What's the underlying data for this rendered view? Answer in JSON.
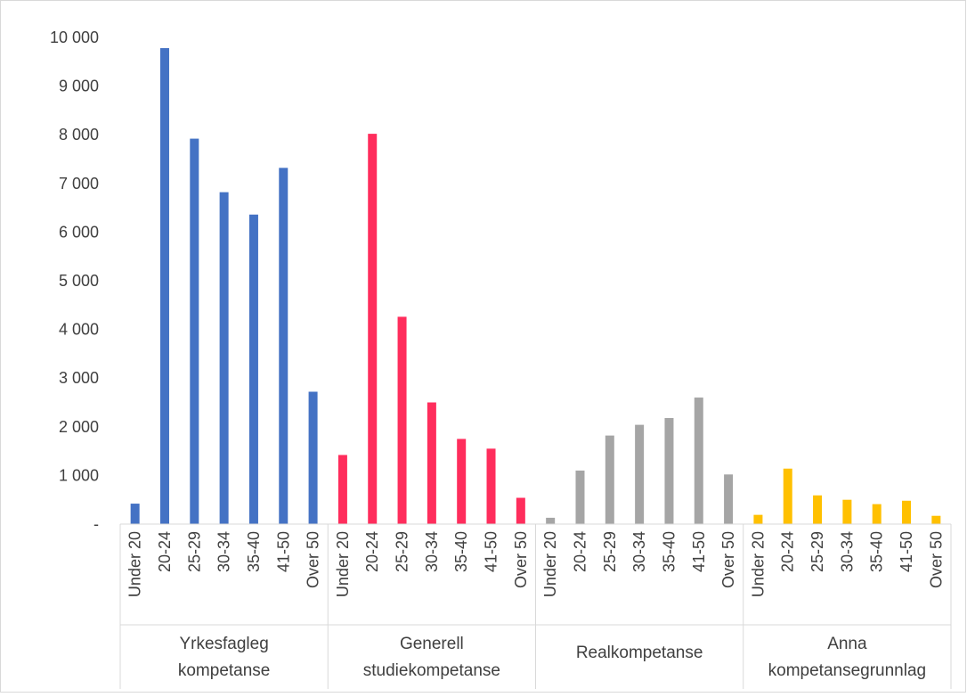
{
  "chart_data": {
    "type": "bar",
    "title": "",
    "xlabel": "",
    "ylabel": "",
    "ylim": [
      0,
      10000
    ],
    "yticks": [
      {
        "value": 0,
        "label": "-"
      },
      {
        "value": 1000,
        "label": "1 000"
      },
      {
        "value": 2000,
        "label": "2 000"
      },
      {
        "value": 3000,
        "label": "3 000"
      },
      {
        "value": 4000,
        "label": "4 000"
      },
      {
        "value": 5000,
        "label": "5 000"
      },
      {
        "value": 6000,
        "label": "6 000"
      },
      {
        "value": 7000,
        "label": "7 000"
      },
      {
        "value": 8000,
        "label": "8 000"
      },
      {
        "value": 9000,
        "label": "9 000"
      },
      {
        "value": 10000,
        "label": "10 000"
      }
    ],
    "grid": false,
    "legend": "none",
    "categories": [
      "Under 20",
      "20-24",
      "25-29",
      "30-34",
      "35-40",
      "41-50",
      "Over 50"
    ],
    "groups": [
      {
        "name": "Yrkesfagleg kompetanse",
        "label_lines": [
          "Yrkesfagleg",
          "kompetanse"
        ],
        "color": "#4472c4",
        "values": [
          420,
          9780,
          7920,
          6820,
          6360,
          7320,
          2720
        ]
      },
      {
        "name": "Generell studiekompetanse",
        "label_lines": [
          "Generell",
          "studiekompetanse"
        ],
        "color": "#ff2d5c",
        "values": [
          1420,
          8020,
          4260,
          2500,
          1750,
          1550,
          540
        ]
      },
      {
        "name": "Realkompetanse",
        "label_lines": [
          "Realkompetanse"
        ],
        "color": "#a5a5a5",
        "values": [
          130,
          1100,
          1820,
          2040,
          2180,
          2600,
          1020
        ]
      },
      {
        "name": "Anna kompetansegrunnlag",
        "label_lines": [
          "Anna",
          "kompetansegrunnlag"
        ],
        "color": "#ffc000",
        "values": [
          190,
          1140,
          590,
          500,
          410,
          480,
          170
        ]
      }
    ]
  }
}
